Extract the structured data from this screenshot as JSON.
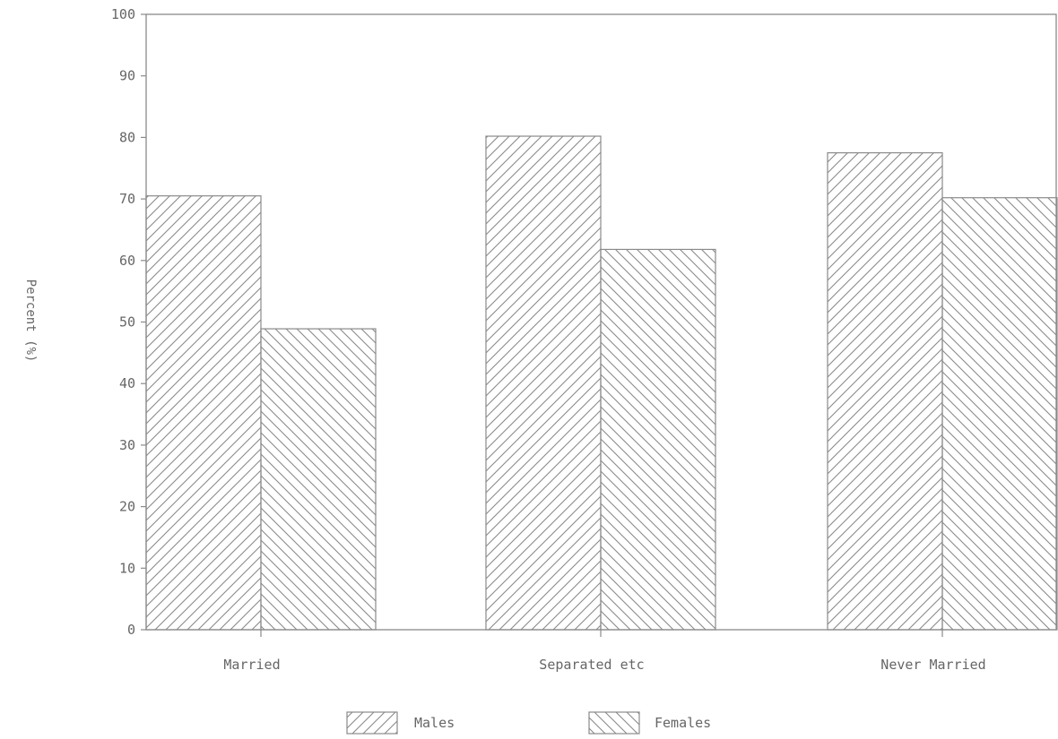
{
  "chart_data": {
    "type": "bar",
    "title": "",
    "xlabel": "",
    "ylabel": "Percent (%)",
    "ylim": [
      0,
      100
    ],
    "yticks": [
      0,
      10,
      20,
      30,
      40,
      50,
      60,
      70,
      80,
      90,
      100
    ],
    "categories": [
      "Married",
      "Separated etc",
      "Never Married"
    ],
    "series": [
      {
        "name": "Males",
        "values": [
          70.5,
          80.2,
          77.5
        ],
        "pattern": "hatch-forward"
      },
      {
        "name": "Females",
        "values": [
          48.9,
          61.8,
          70.2
        ],
        "pattern": "hatch-back"
      }
    ],
    "grid": false,
    "legend_position": "bottom-center",
    "colors": {
      "stroke": "#888888",
      "text": "#666666",
      "background": "#ffffff"
    }
  }
}
